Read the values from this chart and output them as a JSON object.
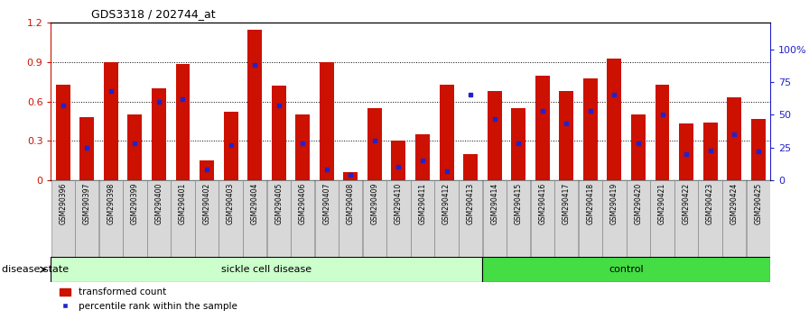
{
  "title": "GDS3318 / 202744_at",
  "samples": [
    "GSM290396",
    "GSM290397",
    "GSM290398",
    "GSM290399",
    "GSM290400",
    "GSM290401",
    "GSM290402",
    "GSM290403",
    "GSM290404",
    "GSM290405",
    "GSM290406",
    "GSM290407",
    "GSM290408",
    "GSM290409",
    "GSM290410",
    "GSM290411",
    "GSM290412",
    "GSM290413",
    "GSM290414",
    "GSM290415",
    "GSM290416",
    "GSM290417",
    "GSM290418",
    "GSM290419",
    "GSM290420",
    "GSM290421",
    "GSM290422",
    "GSM290423",
    "GSM290424",
    "GSM290425"
  ],
  "transformed_count": [
    0.73,
    0.48,
    0.9,
    0.5,
    0.7,
    0.89,
    0.15,
    0.52,
    1.15,
    0.72,
    0.5,
    0.9,
    0.06,
    0.55,
    0.3,
    0.35,
    0.73,
    0.2,
    0.68,
    0.55,
    0.8,
    0.68,
    0.78,
    0.93,
    0.5,
    0.73,
    0.43,
    0.44,
    0.63,
    0.47
  ],
  "percentile_rank": [
    0.57,
    0.25,
    0.68,
    0.28,
    0.6,
    0.62,
    0.08,
    0.27,
    0.88,
    0.57,
    0.28,
    0.08,
    0.04,
    0.3,
    0.1,
    0.15,
    0.07,
    0.65,
    0.47,
    0.28,
    0.53,
    0.43,
    0.53,
    0.65,
    0.28,
    0.5,
    0.2,
    0.23,
    0.35,
    0.22
  ],
  "sickle_count": 18,
  "control_count": 12,
  "bar_color": "#cc1100",
  "percentile_color": "#2222cc",
  "sickle_bg": "#ccffcc",
  "control_bg": "#44dd44",
  "gray_box": "#d8d8d8",
  "gray_box_edge": "#888888",
  "ylim_left": [
    0,
    1.2
  ],
  "yticks_left": [
    0,
    0.3,
    0.6,
    0.9,
    1.2
  ],
  "ytick_labels_left": [
    "0",
    "0.3",
    "0.6",
    "0.9",
    "1.2"
  ],
  "yticks_right_pct": [
    0,
    25,
    50,
    75,
    100
  ],
  "ytick_labels_right": [
    "0",
    "25",
    "50",
    "75",
    "100%"
  ],
  "disease_state_label": "disease state",
  "sickle_label": "sickle cell disease",
  "control_label": "control",
  "legend1": "transformed count",
  "legend2": "percentile rank within the sample"
}
